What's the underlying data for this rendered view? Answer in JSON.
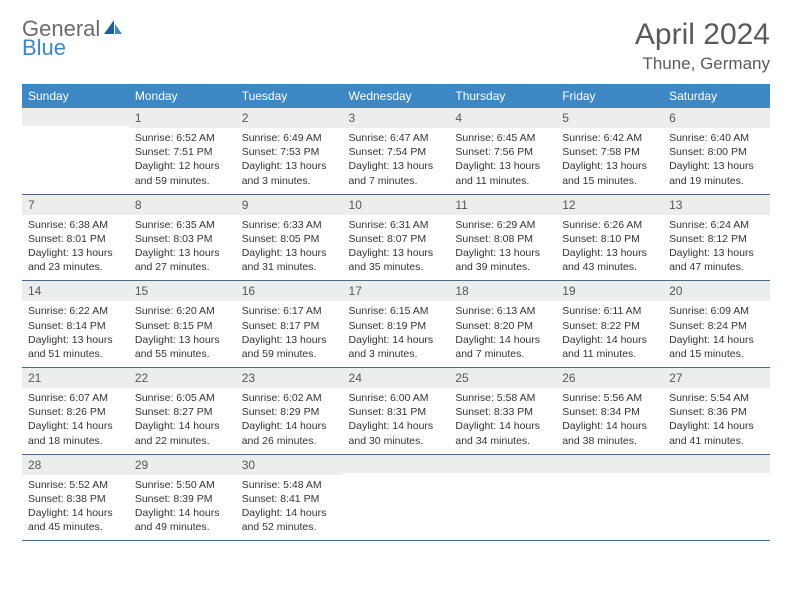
{
  "brand": {
    "part1": "General",
    "part2": "Blue"
  },
  "title": "April 2024",
  "location": "Thune, Germany",
  "colors": {
    "header_bg": "#3d87c4",
    "header_text": "#ffffff",
    "daynum_bg": "#eceded",
    "daynum_text": "#575757",
    "body_text": "#333333",
    "rule": "#4a6a8a",
    "logo_gray": "#6b6b6b",
    "logo_blue": "#3d87c4",
    "title_color": "#5a5a5a"
  },
  "typography": {
    "title_fontsize": 30,
    "location_fontsize": 17,
    "dow_fontsize": 12,
    "daynum_fontsize": 12,
    "body_fontsize": 10.5
  },
  "dow": [
    "Sunday",
    "Monday",
    "Tuesday",
    "Wednesday",
    "Thursday",
    "Friday",
    "Saturday"
  ],
  "weeks": [
    [
      {
        "num": "",
        "lines": [
          "",
          "",
          "",
          ""
        ]
      },
      {
        "num": "1",
        "lines": [
          "Sunrise: 6:52 AM",
          "Sunset: 7:51 PM",
          "Daylight: 12 hours",
          "and 59 minutes."
        ]
      },
      {
        "num": "2",
        "lines": [
          "Sunrise: 6:49 AM",
          "Sunset: 7:53 PM",
          "Daylight: 13 hours",
          "and 3 minutes."
        ]
      },
      {
        "num": "3",
        "lines": [
          "Sunrise: 6:47 AM",
          "Sunset: 7:54 PM",
          "Daylight: 13 hours",
          "and 7 minutes."
        ]
      },
      {
        "num": "4",
        "lines": [
          "Sunrise: 6:45 AM",
          "Sunset: 7:56 PM",
          "Daylight: 13 hours",
          "and 11 minutes."
        ]
      },
      {
        "num": "5",
        "lines": [
          "Sunrise: 6:42 AM",
          "Sunset: 7:58 PM",
          "Daylight: 13 hours",
          "and 15 minutes."
        ]
      },
      {
        "num": "6",
        "lines": [
          "Sunrise: 6:40 AM",
          "Sunset: 8:00 PM",
          "Daylight: 13 hours",
          "and 19 minutes."
        ]
      }
    ],
    [
      {
        "num": "7",
        "lines": [
          "Sunrise: 6:38 AM",
          "Sunset: 8:01 PM",
          "Daylight: 13 hours",
          "and 23 minutes."
        ]
      },
      {
        "num": "8",
        "lines": [
          "Sunrise: 6:35 AM",
          "Sunset: 8:03 PM",
          "Daylight: 13 hours",
          "and 27 minutes."
        ]
      },
      {
        "num": "9",
        "lines": [
          "Sunrise: 6:33 AM",
          "Sunset: 8:05 PM",
          "Daylight: 13 hours",
          "and 31 minutes."
        ]
      },
      {
        "num": "10",
        "lines": [
          "Sunrise: 6:31 AM",
          "Sunset: 8:07 PM",
          "Daylight: 13 hours",
          "and 35 minutes."
        ]
      },
      {
        "num": "11",
        "lines": [
          "Sunrise: 6:29 AM",
          "Sunset: 8:08 PM",
          "Daylight: 13 hours",
          "and 39 minutes."
        ]
      },
      {
        "num": "12",
        "lines": [
          "Sunrise: 6:26 AM",
          "Sunset: 8:10 PM",
          "Daylight: 13 hours",
          "and 43 minutes."
        ]
      },
      {
        "num": "13",
        "lines": [
          "Sunrise: 6:24 AM",
          "Sunset: 8:12 PM",
          "Daylight: 13 hours",
          "and 47 minutes."
        ]
      }
    ],
    [
      {
        "num": "14",
        "lines": [
          "Sunrise: 6:22 AM",
          "Sunset: 8:14 PM",
          "Daylight: 13 hours",
          "and 51 minutes."
        ]
      },
      {
        "num": "15",
        "lines": [
          "Sunrise: 6:20 AM",
          "Sunset: 8:15 PM",
          "Daylight: 13 hours",
          "and 55 minutes."
        ]
      },
      {
        "num": "16",
        "lines": [
          "Sunrise: 6:17 AM",
          "Sunset: 8:17 PM",
          "Daylight: 13 hours",
          "and 59 minutes."
        ]
      },
      {
        "num": "17",
        "lines": [
          "Sunrise: 6:15 AM",
          "Sunset: 8:19 PM",
          "Daylight: 14 hours",
          "and 3 minutes."
        ]
      },
      {
        "num": "18",
        "lines": [
          "Sunrise: 6:13 AM",
          "Sunset: 8:20 PM",
          "Daylight: 14 hours",
          "and 7 minutes."
        ]
      },
      {
        "num": "19",
        "lines": [
          "Sunrise: 6:11 AM",
          "Sunset: 8:22 PM",
          "Daylight: 14 hours",
          "and 11 minutes."
        ]
      },
      {
        "num": "20",
        "lines": [
          "Sunrise: 6:09 AM",
          "Sunset: 8:24 PM",
          "Daylight: 14 hours",
          "and 15 minutes."
        ]
      }
    ],
    [
      {
        "num": "21",
        "lines": [
          "Sunrise: 6:07 AM",
          "Sunset: 8:26 PM",
          "Daylight: 14 hours",
          "and 18 minutes."
        ]
      },
      {
        "num": "22",
        "lines": [
          "Sunrise: 6:05 AM",
          "Sunset: 8:27 PM",
          "Daylight: 14 hours",
          "and 22 minutes."
        ]
      },
      {
        "num": "23",
        "lines": [
          "Sunrise: 6:02 AM",
          "Sunset: 8:29 PM",
          "Daylight: 14 hours",
          "and 26 minutes."
        ]
      },
      {
        "num": "24",
        "lines": [
          "Sunrise: 6:00 AM",
          "Sunset: 8:31 PM",
          "Daylight: 14 hours",
          "and 30 minutes."
        ]
      },
      {
        "num": "25",
        "lines": [
          "Sunrise: 5:58 AM",
          "Sunset: 8:33 PM",
          "Daylight: 14 hours",
          "and 34 minutes."
        ]
      },
      {
        "num": "26",
        "lines": [
          "Sunrise: 5:56 AM",
          "Sunset: 8:34 PM",
          "Daylight: 14 hours",
          "and 38 minutes."
        ]
      },
      {
        "num": "27",
        "lines": [
          "Sunrise: 5:54 AM",
          "Sunset: 8:36 PM",
          "Daylight: 14 hours",
          "and 41 minutes."
        ]
      }
    ],
    [
      {
        "num": "28",
        "lines": [
          "Sunrise: 5:52 AM",
          "Sunset: 8:38 PM",
          "Daylight: 14 hours",
          "and 45 minutes."
        ]
      },
      {
        "num": "29",
        "lines": [
          "Sunrise: 5:50 AM",
          "Sunset: 8:39 PM",
          "Daylight: 14 hours",
          "and 49 minutes."
        ]
      },
      {
        "num": "30",
        "lines": [
          "Sunrise: 5:48 AM",
          "Sunset: 8:41 PM",
          "Daylight: 14 hours",
          "and 52 minutes."
        ]
      },
      {
        "num": "",
        "lines": [
          "",
          "",
          "",
          ""
        ]
      },
      {
        "num": "",
        "lines": [
          "",
          "",
          "",
          ""
        ]
      },
      {
        "num": "",
        "lines": [
          "",
          "",
          "",
          ""
        ]
      },
      {
        "num": "",
        "lines": [
          "",
          "",
          "",
          ""
        ]
      }
    ]
  ]
}
